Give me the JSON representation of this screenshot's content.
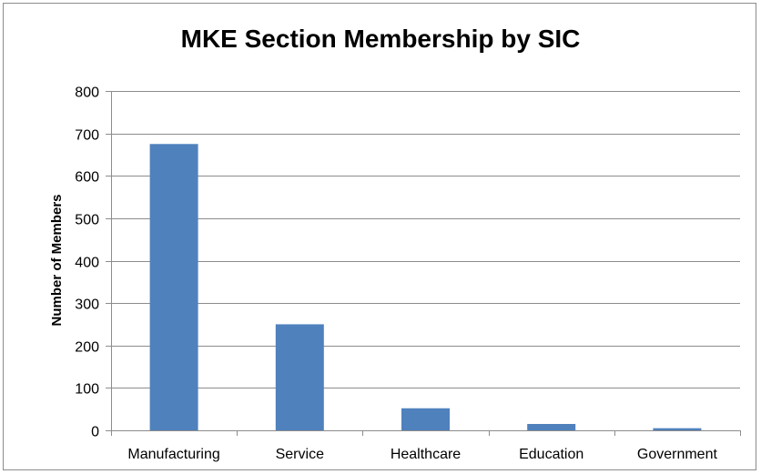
{
  "chart_data": {
    "type": "bar",
    "title": "MKE Section Membership by SIC",
    "xlabel": "",
    "ylabel": "Number of Members",
    "categories": [
      "Manufacturing",
      "Service",
      "Healthcare",
      "Education",
      "Government"
    ],
    "values": [
      675,
      250,
      52,
      15,
      5
    ],
    "ylim": [
      0,
      800
    ],
    "yticks": [
      0,
      100,
      200,
      300,
      400,
      500,
      600,
      700,
      800
    ],
    "grid": true,
    "legend": "none",
    "bar_color": "#4f81bd",
    "grid_color": "#8c8c8c"
  }
}
